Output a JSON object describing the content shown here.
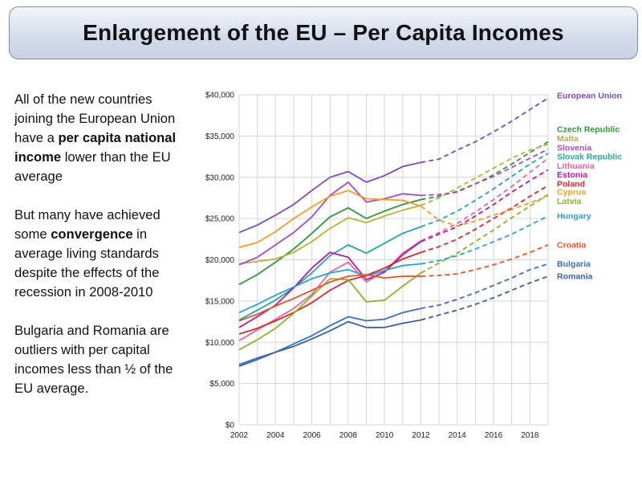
{
  "slide": {
    "title": "Enlargement of the EU – Per Capita Incomes",
    "paragraphs": [
      [
        {
          "t": "All of the new countries joining the European Union have a "
        },
        {
          "t": "per capita national income",
          "b": true
        },
        {
          "t": " lower than the EU average"
        }
      ],
      [
        {
          "t": "But many have achieved some "
        },
        {
          "t": "convergence",
          "b": true
        },
        {
          "t": " in average living standards despite the effects of the recession in 2008-2010"
        }
      ],
      [
        {
          "t": "Bulgaria and Romania are outliers with per capital incomes less than ½ of the EU average."
        }
      ]
    ]
  },
  "chart_data": {
    "type": "line",
    "x_tick_labels": [
      "2002",
      "2004",
      "2006",
      "2008",
      "2010",
      "2012",
      "2014",
      "2016",
      "2018"
    ],
    "y_tick_labels": [
      "$0",
      "$5,000",
      "$10,000",
      "$15,000",
      "$20,000",
      "$25,000",
      "$30,000",
      "$35,000",
      "$40,000"
    ],
    "xlim": [
      2002,
      2019
    ],
    "ylim": [
      0,
      40000
    ],
    "grid": true,
    "solid_through_year": 2012,
    "projection_style": "dashed",
    "series": [
      {
        "name": "European Union",
        "color": "#7a49c8",
        "label_y": 39900,
        "x": [
          2002,
          2003,
          2004,
          2005,
          2006,
          2007,
          2008,
          2009,
          2010,
          2011,
          2012,
          2013,
          2014,
          2015,
          2016,
          2017,
          2018,
          2019
        ],
        "y": [
          23300,
          24200,
          25400,
          26700,
          28400,
          30000,
          30700,
          29400,
          30200,
          31300,
          31800,
          32200,
          33300,
          34300,
          35500,
          36800,
          38200,
          39600
        ]
      },
      {
        "name": "Czech Republic",
        "color": "#2a9a3a",
        "label_y": 35800,
        "x": [
          2002,
          2003,
          2004,
          2005,
          2006,
          2007,
          2008,
          2009,
          2010,
          2011,
          2012,
          2013,
          2014,
          2015,
          2016,
          2017,
          2018,
          2019
        ],
        "y": [
          17000,
          18200,
          19700,
          21300,
          23200,
          25200,
          26300,
          25000,
          25900,
          26700,
          27300,
          27700,
          28300,
          29200,
          30300,
          31600,
          33000,
          34300
        ]
      },
      {
        "name": "Malta",
        "color": "#b7b13a",
        "label_y": 34700,
        "x": [
          2002,
          2003,
          2004,
          2005,
          2006,
          2007,
          2008,
          2009,
          2010,
          2011,
          2012,
          2013,
          2014,
          2015,
          2016,
          2017,
          2018,
          2019
        ],
        "y": [
          19500,
          19800,
          20100,
          20900,
          22200,
          23800,
          25100,
          24500,
          25300,
          26000,
          26600,
          27500,
          28700,
          29900,
          31100,
          32300,
          33300,
          34000
        ]
      },
      {
        "name": "Slovenia",
        "color": "#a34cc6",
        "label_y": 33600,
        "x": [
          2002,
          2003,
          2004,
          2005,
          2006,
          2007,
          2008,
          2009,
          2010,
          2011,
          2012,
          2013,
          2014,
          2015,
          2016,
          2017,
          2018,
          2019
        ],
        "y": [
          19400,
          20300,
          21800,
          23300,
          25200,
          27800,
          29400,
          27000,
          27400,
          28000,
          27800,
          27900,
          28200,
          29200,
          30100,
          31200,
          32300,
          33400
        ]
      },
      {
        "name": "Slovak Republic",
        "color": "#28a6a0",
        "label_y": 32500,
        "x": [
          2002,
          2003,
          2004,
          2005,
          2006,
          2007,
          2008,
          2009,
          2010,
          2011,
          2012,
          2013,
          2014,
          2015,
          2016,
          2017,
          2018,
          2019
        ],
        "y": [
          12700,
          13900,
          15100,
          16600,
          18400,
          20500,
          21800,
          20800,
          22000,
          23200,
          24000,
          24800,
          25900,
          27200,
          28600,
          30100,
          31600,
          32900
        ]
      },
      {
        "name": "Lithuania",
        "color": "#de6a9a",
        "label_y": 31400,
        "x": [
          2002,
          2003,
          2004,
          2005,
          2006,
          2007,
          2008,
          2009,
          2010,
          2011,
          2012,
          2013,
          2014,
          2015,
          2016,
          2017,
          2018,
          2019
        ],
        "y": [
          10200,
          11500,
          12800,
          14100,
          15800,
          18500,
          19700,
          17300,
          18600,
          20800,
          22300,
          23300,
          24400,
          25800,
          27300,
          28900,
          30600,
          32300
        ]
      },
      {
        "name": "Estonia",
        "color": "#b51b9f",
        "label_y": 30300,
        "x": [
          2002,
          2003,
          2004,
          2005,
          2006,
          2007,
          2008,
          2009,
          2010,
          2011,
          2012,
          2013,
          2014,
          2015,
          2016,
          2017,
          2018,
          2019
        ],
        "y": [
          11800,
          13100,
          14500,
          16600,
          19000,
          20900,
          20300,
          17600,
          18500,
          20600,
          22200,
          23100,
          24000,
          25300,
          26700,
          28200,
          29600,
          30900
        ]
      },
      {
        "name": "Poland",
        "color": "#d8272e",
        "label_y": 29200,
        "x": [
          2002,
          2003,
          2004,
          2005,
          2006,
          2007,
          2008,
          2009,
          2010,
          2011,
          2012,
          2013,
          2014,
          2015,
          2016,
          2017,
          2018,
          2019
        ],
        "y": [
          11000,
          11700,
          12600,
          13600,
          14800,
          16300,
          17500,
          18100,
          19000,
          20100,
          20900,
          21600,
          22500,
          23700,
          25000,
          26300,
          27700,
          29000
        ]
      },
      {
        "name": "Cyprus",
        "color": "#f39b2b",
        "label_y": 28200,
        "x": [
          2002,
          2003,
          2004,
          2005,
          2006,
          2007,
          2008,
          2009,
          2010,
          2011,
          2012,
          2013,
          2014,
          2015,
          2016,
          2017,
          2018,
          2019
        ],
        "y": [
          21500,
          22100,
          23400,
          25000,
          26400,
          27700,
          28400,
          27400,
          27300,
          27200,
          26500,
          24800,
          24100,
          24700,
          25400,
          26100,
          26900,
          27700
        ]
      },
      {
        "name": "Latvia",
        "color": "#8cb425",
        "label_y": 27100,
        "x": [
          2002,
          2003,
          2004,
          2005,
          2006,
          2007,
          2008,
          2009,
          2010,
          2011,
          2012,
          2013,
          2014,
          2015,
          2016,
          2017,
          2018,
          2019
        ],
        "y": [
          9100,
          10300,
          11700,
          13500,
          15600,
          17700,
          17600,
          14900,
          15100,
          16800,
          18400,
          19600,
          20800,
          22200,
          23600,
          25100,
          26500,
          27900
        ]
      },
      {
        "name": "Hungary",
        "color": "#2f9dd6",
        "label_y": 25300,
        "x": [
          2002,
          2003,
          2004,
          2005,
          2006,
          2007,
          2008,
          2009,
          2010,
          2011,
          2012,
          2013,
          2014,
          2015,
          2016,
          2017,
          2018,
          2019
        ],
        "y": [
          13600,
          14600,
          15700,
          16700,
          17700,
          18400,
          18800,
          18000,
          18700,
          19300,
          19500,
          19900,
          20500,
          21300,
          22200,
          23100,
          24200,
          25300
        ]
      },
      {
        "name": "Croatia",
        "color": "#e8542a",
        "label_y": 21800,
        "x": [
          2002,
          2003,
          2004,
          2005,
          2006,
          2007,
          2008,
          2009,
          2010,
          2011,
          2012,
          2013,
          2014,
          2015,
          2016,
          2017,
          2018,
          2019
        ],
        "y": [
          12600,
          13400,
          14400,
          15300,
          16300,
          17300,
          18000,
          18200,
          17800,
          18000,
          18000,
          18100,
          18300,
          18800,
          19400,
          20100,
          20900,
          21800
        ]
      },
      {
        "name": "Bulgaria",
        "color": "#3c6dc7",
        "label_y": 19500,
        "x": [
          2002,
          2003,
          2004,
          2005,
          2006,
          2007,
          2008,
          2009,
          2010,
          2011,
          2012,
          2013,
          2014,
          2015,
          2016,
          2017,
          2018,
          2019
        ],
        "y": [
          7300,
          8100,
          8800,
          9800,
          10800,
          12000,
          13100,
          12600,
          12800,
          13600,
          14100,
          14500,
          15200,
          16000,
          16900,
          17800,
          18800,
          19500
        ]
      },
      {
        "name": "Romania",
        "color": "#3b5fa5",
        "label_y": 18000,
        "x": [
          2002,
          2003,
          2004,
          2005,
          2006,
          2007,
          2008,
          2009,
          2010,
          2011,
          2012,
          2013,
          2014,
          2015,
          2016,
          2017,
          2018,
          2019
        ],
        "y": [
          7100,
          7900,
          8800,
          9500,
          10400,
          11400,
          12500,
          11800,
          11800,
          12300,
          12700,
          13300,
          13900,
          14600,
          15400,
          16300,
          17200,
          18000
        ]
      }
    ]
  }
}
